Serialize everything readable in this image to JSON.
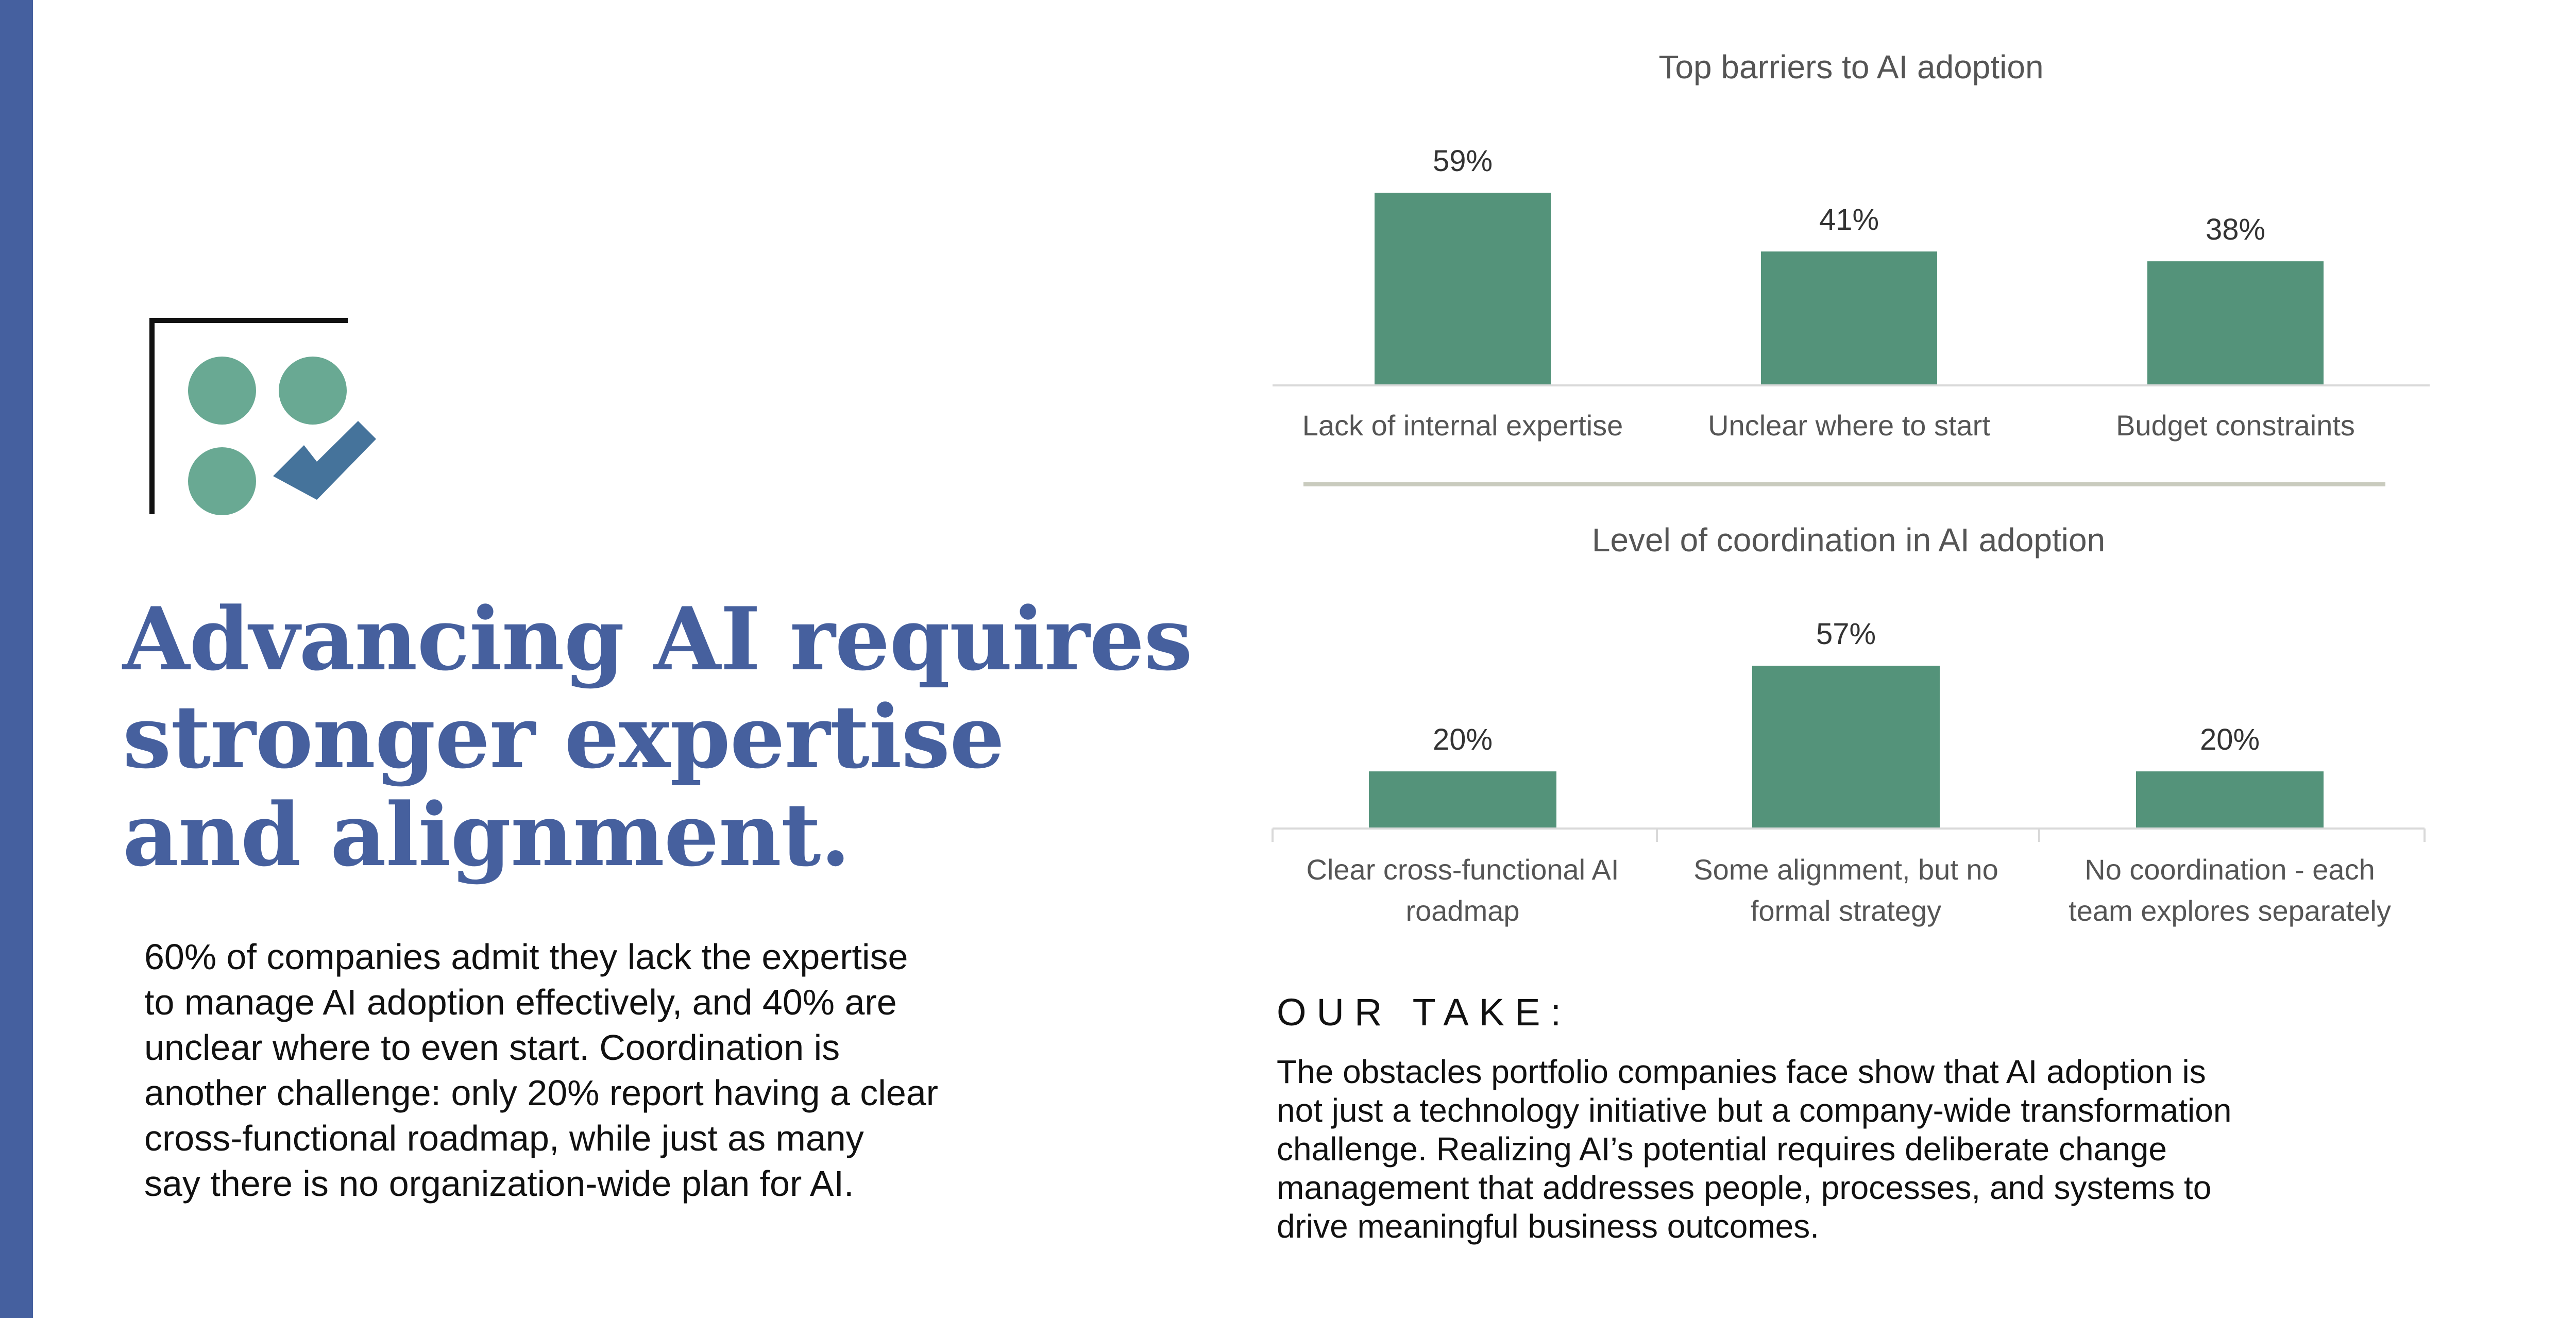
{
  "colors": {
    "accent_bar": "#45609F",
    "headline": "#46609E",
    "bar_fill": "#54937A",
    "axis_line": "#D9D9D9",
    "divider": "#C9CBBE",
    "logo_circle": "#69A993",
    "logo_check": "#45739B",
    "logo_frame": "#111111",
    "chart_text": "#555555"
  },
  "headline": {
    "lines": [
      "Advancing AI requires",
      "stronger expertise",
      "and alignment."
    ]
  },
  "body": {
    "lines": [
      "60% of companies admit they lack the expertise",
      "to manage AI adoption effectively, and 40% are",
      "unclear where to even start. Coordination is",
      "another challenge: only 20% report having a clear",
      "cross-functional roadmap, while just as many",
      "say there is no organization-wide plan for AI."
    ]
  },
  "our_take": {
    "heading": "OUR TAKE:",
    "lines": [
      "The obstacles portfolio companies face show that AI adoption is",
      "not just a technology initiative but a company-wide transformation",
      "challenge. Realizing AI’s potential requires deliberate change",
      "management that addresses people, processes, and systems to",
      "drive meaningful business outcomes."
    ]
  },
  "chart_data": [
    {
      "type": "bar",
      "title": "Top barriers to AI adoption",
      "categories": [
        [
          "Lack of internal expertise"
        ],
        [
          "Unclear where to start"
        ],
        [
          "Budget constraints"
        ]
      ],
      "values": [
        59,
        41,
        38
      ],
      "data_labels": [
        "59%",
        "41%",
        "38%"
      ],
      "unit": "%",
      "ylim": [
        0,
        59
      ],
      "grid": false,
      "legend": "none"
    },
    {
      "type": "bar",
      "title": "Level of coordination in AI adoption",
      "categories": [
        [
          "Clear cross-functional AI",
          "roadmap"
        ],
        [
          "Some alignment, but no",
          "formal strategy"
        ],
        [
          "No coordination - each",
          "team explores separately"
        ]
      ],
      "values": [
        20,
        57,
        20
      ],
      "data_labels": [
        "20%",
        "57%",
        "20%"
      ],
      "unit": "%",
      "ylim": [
        0,
        57
      ],
      "grid": false,
      "legend": "none"
    }
  ]
}
